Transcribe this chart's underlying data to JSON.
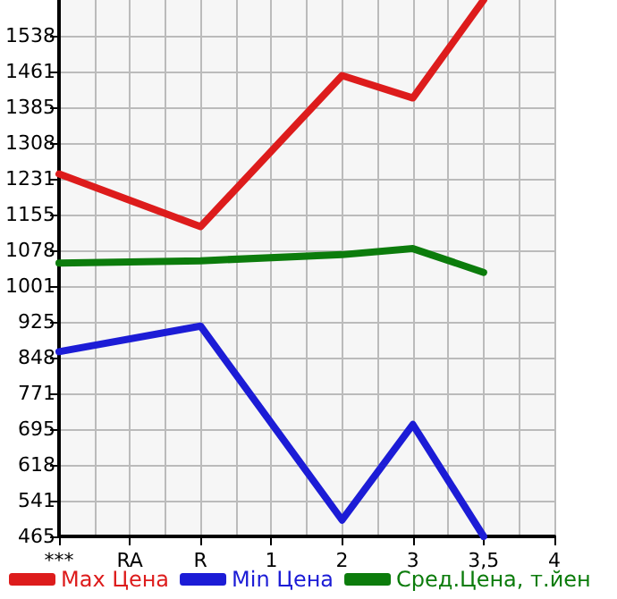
{
  "chart_data": {
    "type": "line",
    "categories": [
      "***",
      "RA",
      "R",
      "1",
      "2",
      "3",
      "3,5",
      "4"
    ],
    "series": [
      {
        "name": "Max Цена",
        "color": "#dd1c1c",
        "values": [
          1242,
          null,
          1129,
          null,
          1453,
          1405,
          1615,
          null
        ]
      },
      {
        "name": "Min Цена",
        "color": "#1c1cd6",
        "values": [
          861,
          null,
          916,
          null,
          500,
          705,
          465,
          null
        ]
      },
      {
        "name": "Сред.Цена, т.йен",
        "color": "#0c7c0c",
        "values": [
          1051,
          null,
          1056,
          null,
          1069,
          1082,
          1031,
          null
        ]
      }
    ],
    "ylim": [
      465,
      1615
    ],
    "yticks": [
      465,
      541,
      618,
      695,
      771,
      848,
      925,
      1001,
      1078,
      1155,
      1231,
      1308,
      1385,
      1461,
      1538
    ],
    "grid": true,
    "legend": "bottom",
    "marker": "none",
    "line_style": "solid"
  }
}
